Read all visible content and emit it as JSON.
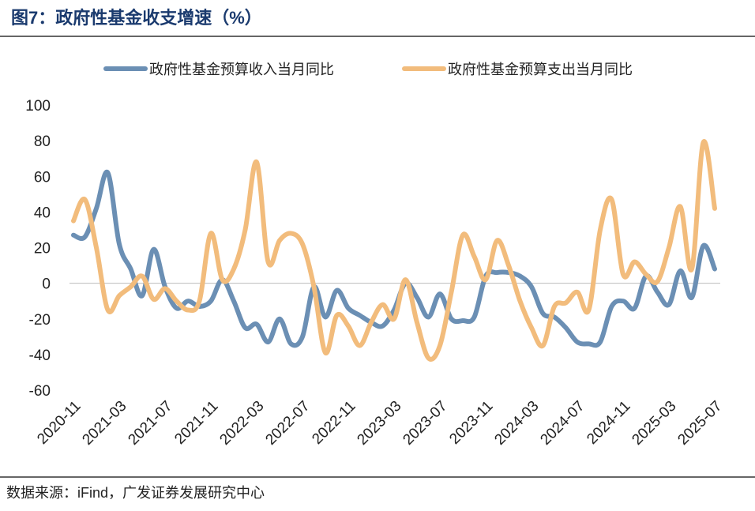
{
  "title": "图7：政府性基金收支增速（%）",
  "source": "数据来源：iFind，广发证券发展研究中心",
  "chart_data": {
    "type": "line",
    "categories": [
      "2020-11",
      null,
      null,
      null,
      "2021-03",
      null,
      null,
      null,
      "2021-07",
      null,
      null,
      null,
      "2021-11",
      null,
      null,
      null,
      "2022-03",
      null,
      null,
      null,
      "2022-07",
      null,
      null,
      null,
      "2022-11",
      null,
      null,
      null,
      "2023-03",
      null,
      null,
      null,
      "2023-07",
      null,
      null,
      null,
      "2023-11",
      null,
      null,
      null,
      "2024-03",
      null,
      null,
      null,
      "2024-07",
      null,
      null,
      null,
      "2024-11",
      null,
      null,
      null,
      "2025-03",
      null,
      null,
      null,
      "2025-07"
    ],
    "series": [
      {
        "name": "政府性基金预算收入当月同比",
        "color": "#6b8fb4",
        "values": [
          27,
          26,
          42,
          62,
          22,
          8,
          -7,
          19,
          -2,
          -14,
          -10,
          -13,
          -10,
          2,
          -10,
          -25,
          -23,
          -33,
          -20,
          -34,
          -30,
          -2,
          -19,
          -4,
          -14,
          -18,
          -22,
          -24,
          -15,
          0,
          -8,
          -19,
          -6,
          -20,
          -21,
          -19,
          4,
          6,
          6,
          4,
          -2,
          -17,
          -19,
          -25,
          -33,
          -34,
          -33,
          -13,
          -10,
          -14,
          4,
          -5,
          -12,
          7,
          -8,
          21,
          8
        ]
      },
      {
        "name": "政府性基金预算支出当月同比",
        "color": "#f2bc7c",
        "values": [
          35,
          47,
          20,
          -15,
          -7,
          -2,
          4,
          -9,
          -3,
          -10,
          -15,
          -10,
          28,
          2,
          8,
          30,
          68,
          12,
          24,
          28,
          22,
          -2,
          -39,
          -18,
          -24,
          -35,
          -22,
          -12,
          -20,
          2,
          -22,
          -42,
          -35,
          -5,
          27,
          15,
          2,
          24,
          10,
          -10,
          -25,
          -35,
          -13,
          -11,
          -5,
          -15,
          30,
          47,
          5,
          12,
          5,
          1,
          20,
          43,
          8,
          79,
          42
        ]
      }
    ],
    "ylim": [
      -60,
      100
    ],
    "yticks": [
      -60,
      -40,
      -20,
      0,
      20,
      40,
      60,
      80,
      100
    ],
    "legend": "top"
  }
}
